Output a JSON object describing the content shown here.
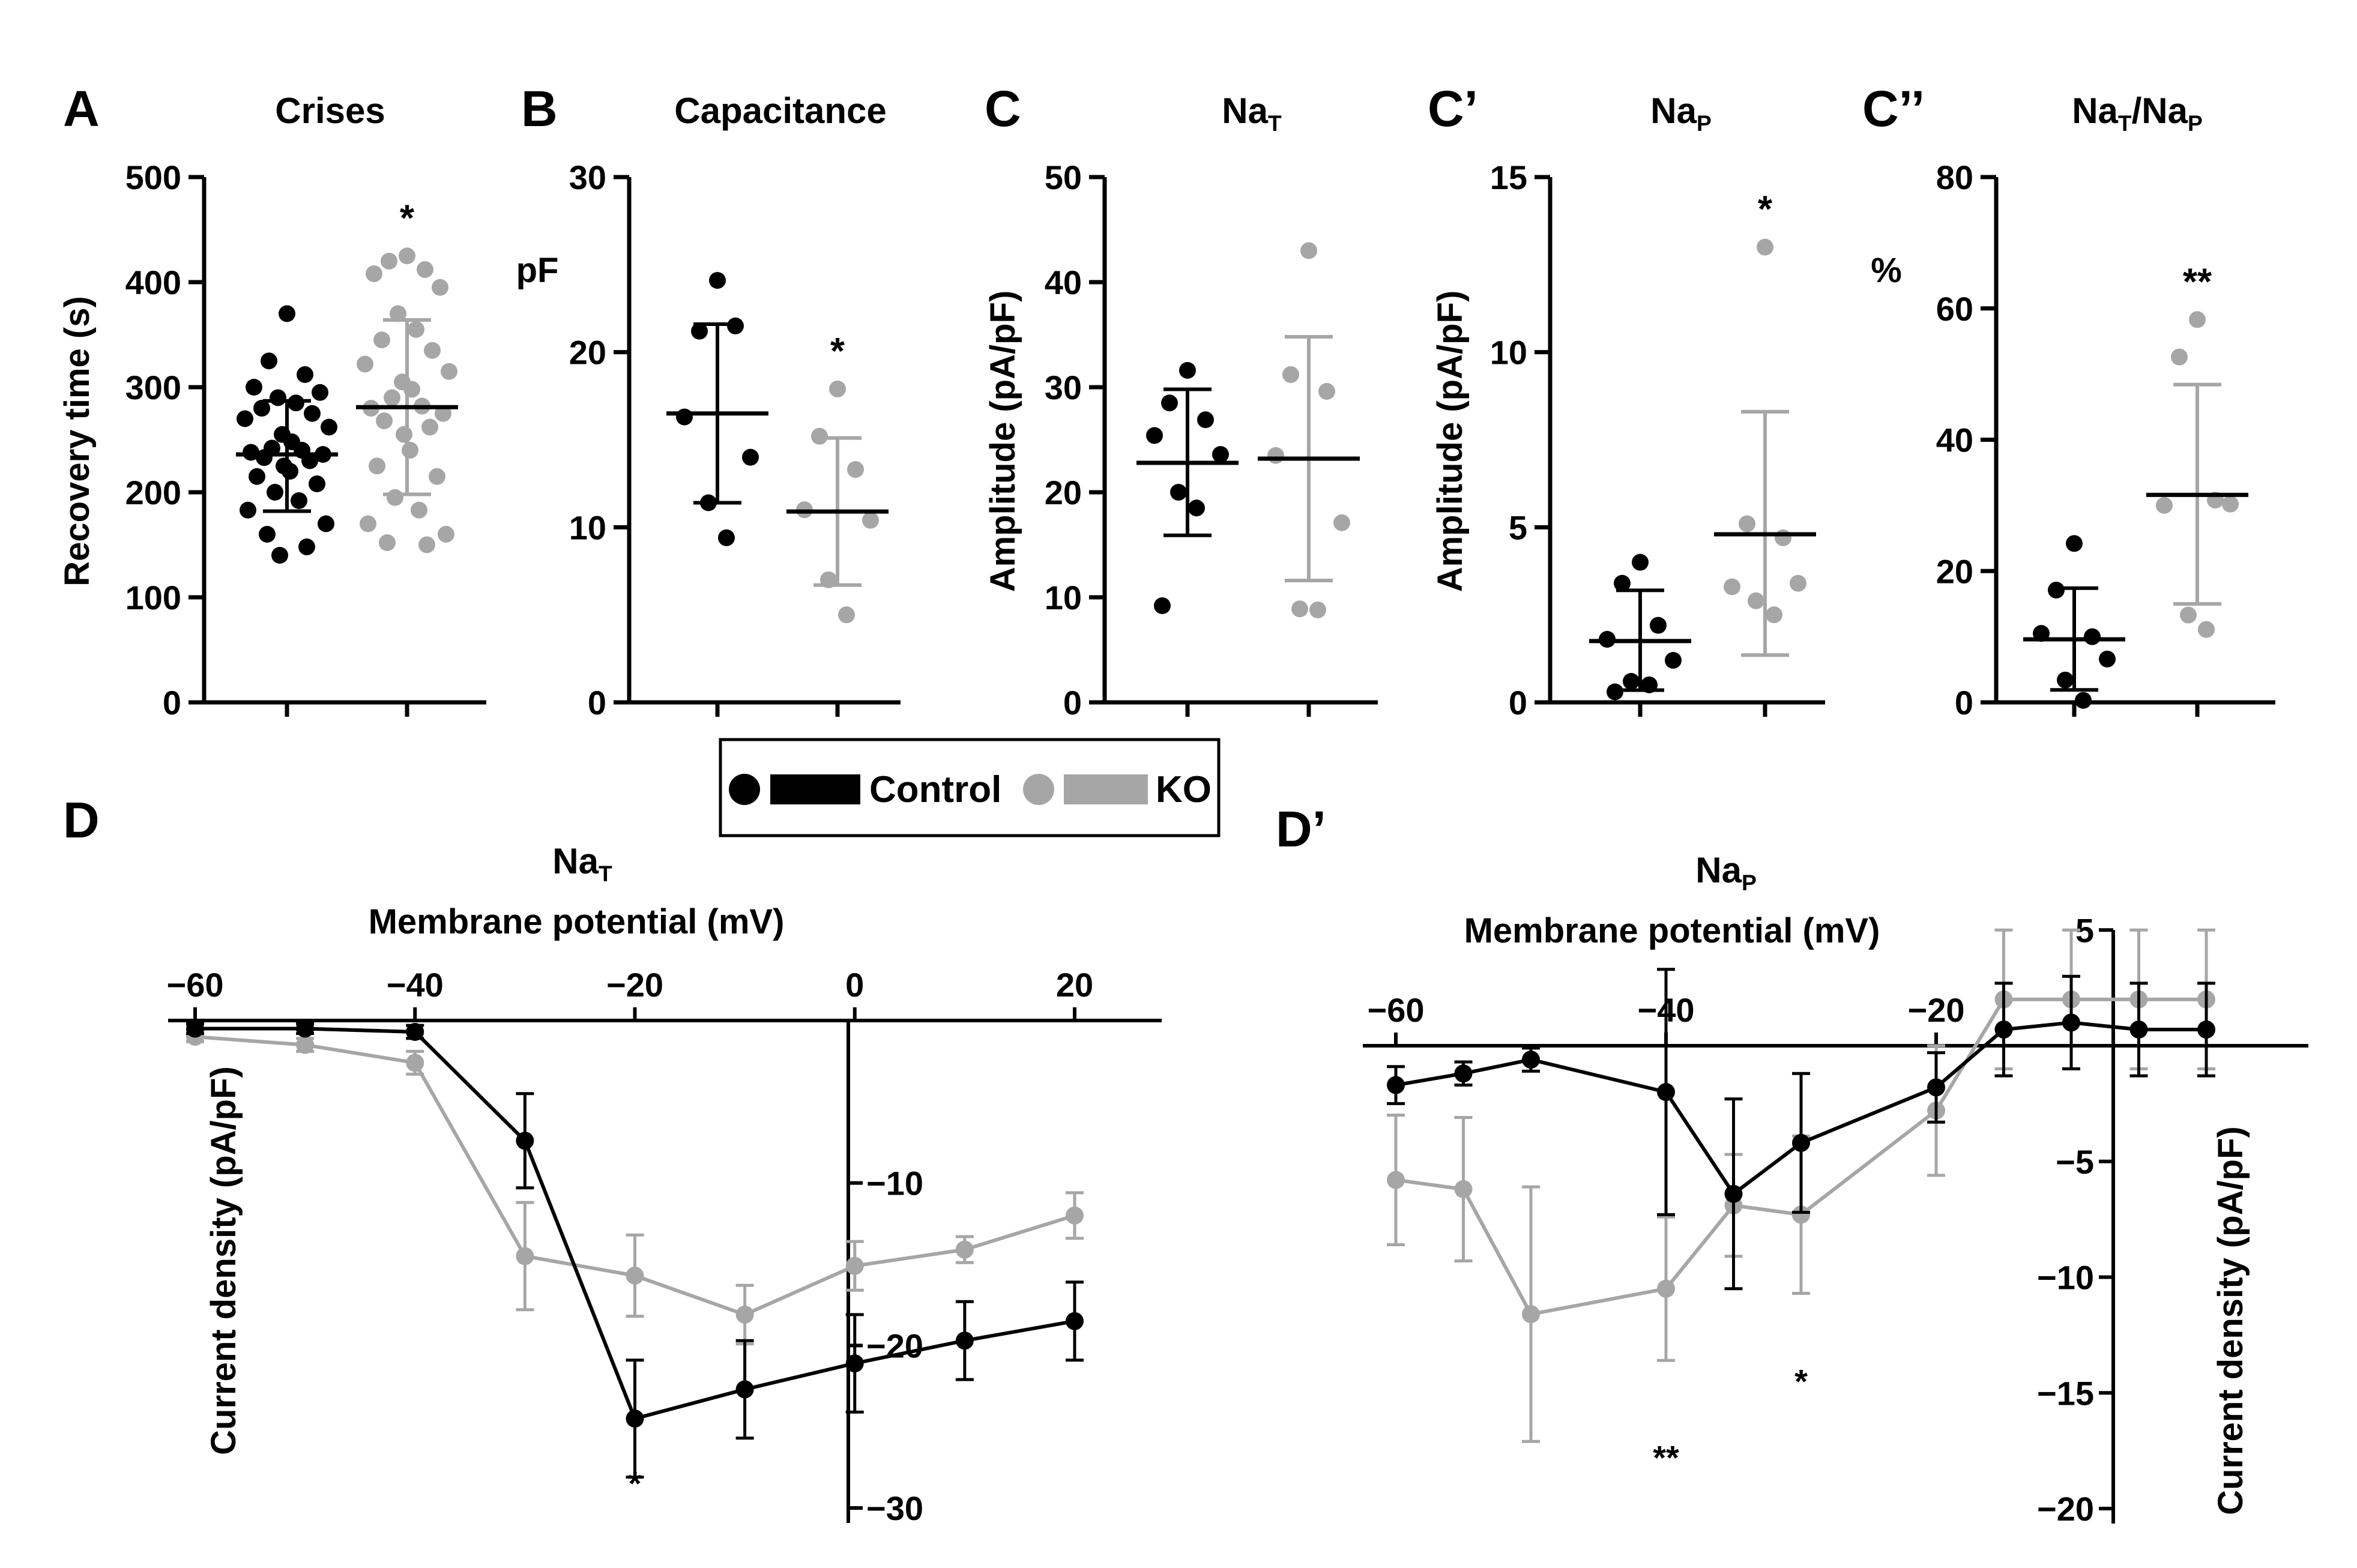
{
  "colors": {
    "control": "#000000",
    "ko": "#a6a6a6",
    "axis": "#000000"
  },
  "legend": {
    "items": [
      {
        "label": "Control",
        "color": "#000000"
      },
      {
        "label": "KO",
        "color": "#a6a6a6"
      }
    ]
  },
  "chart_data": [
    {
      "id": "A",
      "panel_letter": "A",
      "type": "scatter",
      "title": "Crises",
      "ylabel": "Recovery time (s)",
      "ylim": [
        0,
        500
      ],
      "yticks": [
        0,
        100,
        200,
        300,
        400,
        500
      ],
      "significance": [
        "",
        "*"
      ],
      "groups": [
        {
          "name": "Control",
          "mean": 236,
          "sd_low": 182,
          "sd_high": 287,
          "points": [
            370,
            325,
            312,
            300,
            295,
            290,
            285,
            280,
            275,
            270,
            262,
            255,
            248,
            242,
            240,
            238,
            236,
            233,
            230,
            225,
            220,
            215,
            208,
            200,
            192,
            183,
            170,
            160,
            148,
            140
          ]
        },
        {
          "name": "KO",
          "mean": 281,
          "sd_low": 198,
          "sd_high": 364,
          "points": [
            425,
            420,
            412,
            408,
            395,
            370,
            355,
            345,
            335,
            322,
            315,
            305,
            298,
            290,
            282,
            280,
            275,
            268,
            262,
            255,
            240,
            225,
            215,
            195,
            183,
            170,
            160,
            152,
            150
          ]
        }
      ]
    },
    {
      "id": "B",
      "panel_letter": "B",
      "type": "scatter",
      "title": "Capacitance",
      "ylabel": "pF",
      "ylim": [
        0,
        30
      ],
      "yticks": [
        0,
        10,
        20,
        30
      ],
      "significance": [
        "",
        "*"
      ],
      "groups": [
        {
          "name": "Control",
          "mean": 16.5,
          "sd_low": 11.4,
          "sd_high": 21.6,
          "points": [
            24.1,
            21.2,
            21.5,
            16.3,
            14.0,
            11.4,
            9.4
          ]
        },
        {
          "name": "KO",
          "mean": 10.9,
          "sd_low": 6.7,
          "sd_high": 15.1,
          "points": [
            17.9,
            15.2,
            13.3,
            11.0,
            10.4,
            7.0,
            5.0
          ]
        }
      ]
    },
    {
      "id": "C",
      "panel_letter": "C",
      "type": "scatter",
      "title": "NaT",
      "title_main": "Na",
      "title_sub": "T",
      "ylabel": "Amplitude (pA/pF)",
      "ylim": [
        0,
        50
      ],
      "yticks": [
        0,
        10,
        20,
        30,
        40,
        50
      ],
      "significance": [
        "",
        ""
      ],
      "groups": [
        {
          "name": "Control",
          "mean": 22.8,
          "sd_low": 15.9,
          "sd_high": 29.8,
          "points": [
            31.6,
            28.5,
            26.9,
            25.4,
            23.6,
            20.0,
            18.5,
            9.2
          ]
        },
        {
          "name": "KO",
          "mean": 23.2,
          "sd_low": 11.6,
          "sd_high": 34.8,
          "points": [
            43.0,
            31.2,
            29.6,
            23.5,
            17.1,
            8.9,
            8.8
          ]
        }
      ]
    },
    {
      "id": "C1",
      "panel_letter": "C’",
      "type": "scatter",
      "title": "NaP",
      "title_main": "Na",
      "title_sub": "P",
      "ylabel": "Amplitude (pA/pF)",
      "ylim": [
        0,
        15
      ],
      "yticks": [
        0,
        5,
        10,
        15
      ],
      "significance": [
        "",
        "*"
      ],
      "groups": [
        {
          "name": "Control",
          "mean": 1.75,
          "sd_low": 0.35,
          "sd_high": 3.2,
          "points": [
            4.0,
            3.4,
            2.2,
            1.8,
            1.2,
            0.6,
            0.5,
            0.3
          ]
        },
        {
          "name": "KO",
          "mean": 4.8,
          "sd_low": 1.35,
          "sd_high": 8.3,
          "points": [
            13.0,
            5.1,
            4.7,
            3.3,
            3.4,
            2.9,
            2.5
          ]
        }
      ]
    },
    {
      "id": "C2",
      "panel_letter": "C’’",
      "type": "scatter",
      "title": "NaT/NaP",
      "title_main": "Na",
      "title_sub": "T",
      "title_mid": "/Na",
      "title_sub2": "P",
      "ylabel": "%",
      "ylim": [
        0,
        80
      ],
      "yticks": [
        0,
        20,
        40,
        60,
        80
      ],
      "significance": [
        "",
        "**"
      ],
      "groups": [
        {
          "name": "Control",
          "mean": 9.6,
          "sd_low": 1.9,
          "sd_high": 17.4,
          "points": [
            24.2,
            17.1,
            10.0,
            10.5,
            6.6,
            3.4,
            0.3
          ]
        },
        {
          "name": "KO",
          "mean": 31.6,
          "sd_low": 15.0,
          "sd_high": 48.4,
          "points": [
            58.3,
            52.6,
            30.8,
            30.0,
            30.2,
            13.3,
            11.1
          ]
        }
      ]
    },
    {
      "id": "D",
      "panel_letter": "D",
      "type": "line",
      "title": "NaT",
      "title_main": "Na",
      "title_sub": "T",
      "xlabel": "Membrane potential (mV)",
      "ylabel": "Current density (pA/pF)",
      "xlim": [
        -60,
        25
      ],
      "ylim": [
        -30,
        0
      ],
      "xticks": [
        -60,
        -40,
        -20,
        0,
        20
      ],
      "yticks": [
        -10,
        -20,
        -30
      ],
      "x": [
        -60,
        -50,
        -40,
        -30,
        -20,
        -10,
        0,
        10,
        20
      ],
      "series": [
        {
          "name": "Control",
          "y": [
            -0.5,
            -0.5,
            -0.7,
            -7.4,
            -24.5,
            -22.7,
            -21.1,
            -19.7,
            -18.5
          ],
          "err": [
            0.3,
            0.3,
            0.4,
            2.9,
            3.6,
            3.0,
            3.0,
            2.4,
            2.4
          ]
        },
        {
          "name": "KO",
          "y": [
            -1.0,
            -1.5,
            -2.6,
            -14.5,
            -15.7,
            -18.1,
            -15.1,
            -14.1,
            -12.0
          ],
          "err": [
            0.3,
            0.4,
            0.7,
            3.3,
            2.5,
            1.8,
            1.5,
            0.8,
            1.4
          ]
        }
      ],
      "annotations": [
        {
          "text": "*",
          "x": -20,
          "y": -29.2
        }
      ]
    },
    {
      "id": "D1",
      "panel_letter": "D’",
      "type": "line",
      "title": "NaP",
      "title_main": "Na",
      "title_sub": "P",
      "xlabel": "Membrane potential (mV)",
      "ylabel": "Current density (pA/pF)",
      "xlim": [
        -62,
        2
      ],
      "ylim": [
        -21,
        6
      ],
      "xticks": [
        -60,
        -40,
        -20
      ],
      "yticks": [
        5,
        -5,
        -10,
        -15,
        -20
      ],
      "x": [
        -60,
        -55,
        -50,
        -45,
        -40,
        -35,
        -30,
        -25,
        -20,
        -15,
        -10,
        -5,
        0
      ],
      "series": [
        {
          "name": "Control",
          "x": [
            -60,
            -55,
            -50,
            -40,
            -35,
            -30,
            -20,
            -15,
            -10,
            -5,
            0
          ],
          "y": [
            -1.7,
            -1.2,
            -0.6,
            -2.0,
            -6.4,
            -4.2,
            -1.8,
            0.7,
            1.0,
            0.7,
            0.7
          ],
          "err": [
            0.8,
            0.5,
            0.5,
            5.3,
            4.1,
            3.0,
            1.5,
            2.0,
            2.0,
            2.0,
            2.0
          ]
        },
        {
          "name": "KO",
          "x": [
            -60,
            -55,
            -50,
            -40,
            -35,
            -30,
            -20,
            -15,
            -10,
            -5,
            0
          ],
          "y": [
            -5.8,
            -6.2,
            -11.6,
            -10.5,
            -6.9,
            -7.3,
            -2.8,
            2.0,
            2.0,
            2.0,
            2.0
          ],
          "err": [
            2.8,
            3.1,
            5.5,
            3.1,
            2.2,
            3.4,
            2.8,
            3.0,
            3.0,
            3.0,
            3.0
          ]
        }
      ],
      "annotations": [
        {
          "text": "**",
          "x": -40,
          "y": -18.3
        },
        {
          "text": "*",
          "x": -30,
          "y": -15.0
        }
      ]
    }
  ]
}
